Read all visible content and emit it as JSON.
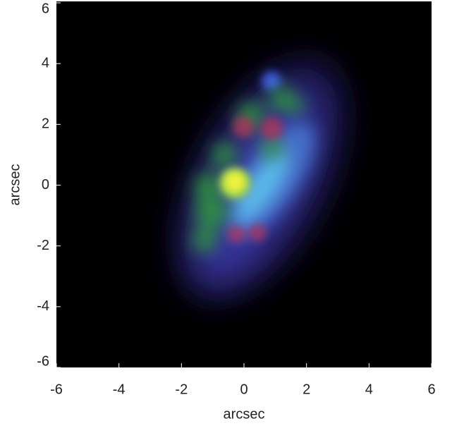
{
  "chart_data": {
    "type": "image",
    "xlabel": "arcsec",
    "ylabel": "arcsec",
    "xlim": [
      -6,
      6
    ],
    "ylim": [
      -6,
      6
    ],
    "xticks": [
      -6,
      -4,
      -2,
      0,
      2,
      4,
      6
    ],
    "yticks": [
      -6,
      -4,
      -2,
      0,
      2,
      4,
      6
    ]
  }
}
